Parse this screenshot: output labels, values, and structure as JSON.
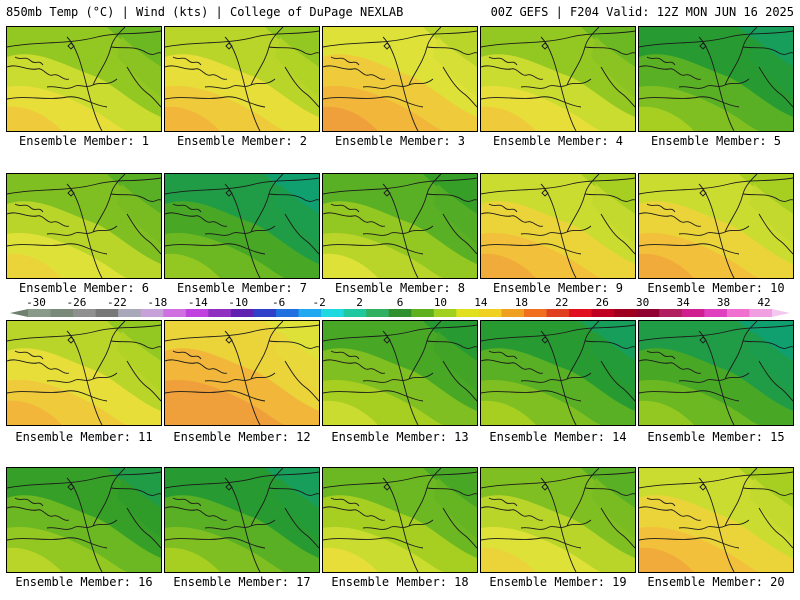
{
  "header": {
    "left": "850mb Temp (°C) | Wind (kts) | College of DuPage NEXLAB",
    "right": "00Z GEFS | F204 Valid: 12Z MON JUN 16 2025"
  },
  "panels": [
    {
      "label": "Ensemble Member: 1",
      "tone": 0.55
    },
    {
      "label": "Ensemble Member: 2",
      "tone": 0.65
    },
    {
      "label": "Ensemble Member: 3",
      "tone": 0.75
    },
    {
      "label": "Ensemble Member: 4",
      "tone": 0.55
    },
    {
      "label": "Ensemble Member: 5",
      "tone": 0.25
    },
    {
      "label": "Ensemble Member: 6",
      "tone": 0.5
    },
    {
      "label": "Ensemble Member: 7",
      "tone": 0.2
    },
    {
      "label": "Ensemble Member: 8",
      "tone": 0.4
    },
    {
      "label": "Ensemble Member: 9",
      "tone": 0.7
    },
    {
      "label": "Ensemble Member: 10",
      "tone": 0.7
    },
    {
      "label": "Ensemble Member: 11",
      "tone": 0.65
    },
    {
      "label": "Ensemble Member: 12",
      "tone": 0.85
    },
    {
      "label": "Ensemble Member: 13",
      "tone": 0.35
    },
    {
      "label": "Ensemble Member: 14",
      "tone": 0.25
    },
    {
      "label": "Ensemble Member: 15",
      "tone": 0.2
    },
    {
      "label": "Ensemble Member: 16",
      "tone": 0.3
    },
    {
      "label": "Ensemble Member: 17",
      "tone": 0.25
    },
    {
      "label": "Ensemble Member: 18",
      "tone": 0.45
    },
    {
      "label": "Ensemble Member: 19",
      "tone": 0.5
    },
    {
      "label": "Ensemble Member: 20",
      "tone": 0.7
    }
  ],
  "colorbar": {
    "ticks": [
      "-30",
      "-26",
      "-22",
      "-18",
      "-14",
      "-10",
      "-6",
      "-2",
      "2",
      "6",
      "10",
      "14",
      "18",
      "22",
      "26",
      "30",
      "34",
      "38",
      "42"
    ],
    "colors": [
      "#8a9a8a",
      "#7a8a7a",
      "#909090",
      "#787878",
      "#a8a8b8",
      "#c6a2d8",
      "#d070e0",
      "#c040e0",
      "#9030c0",
      "#6020b0",
      "#3040c8",
      "#2070e0",
      "#20a8f0",
      "#20d8e0",
      "#20c8a0",
      "#30b060",
      "#309030",
      "#60b020",
      "#a0d020",
      "#e0e020",
      "#f0d020",
      "#f0a020",
      "#f07020",
      "#e04020",
      "#e01020",
      "#c00020",
      "#a00020",
      "#900030",
      "#b02060",
      "#d02090",
      "#e040c0",
      "#f070d0",
      "#f0a0e0"
    ]
  }
}
